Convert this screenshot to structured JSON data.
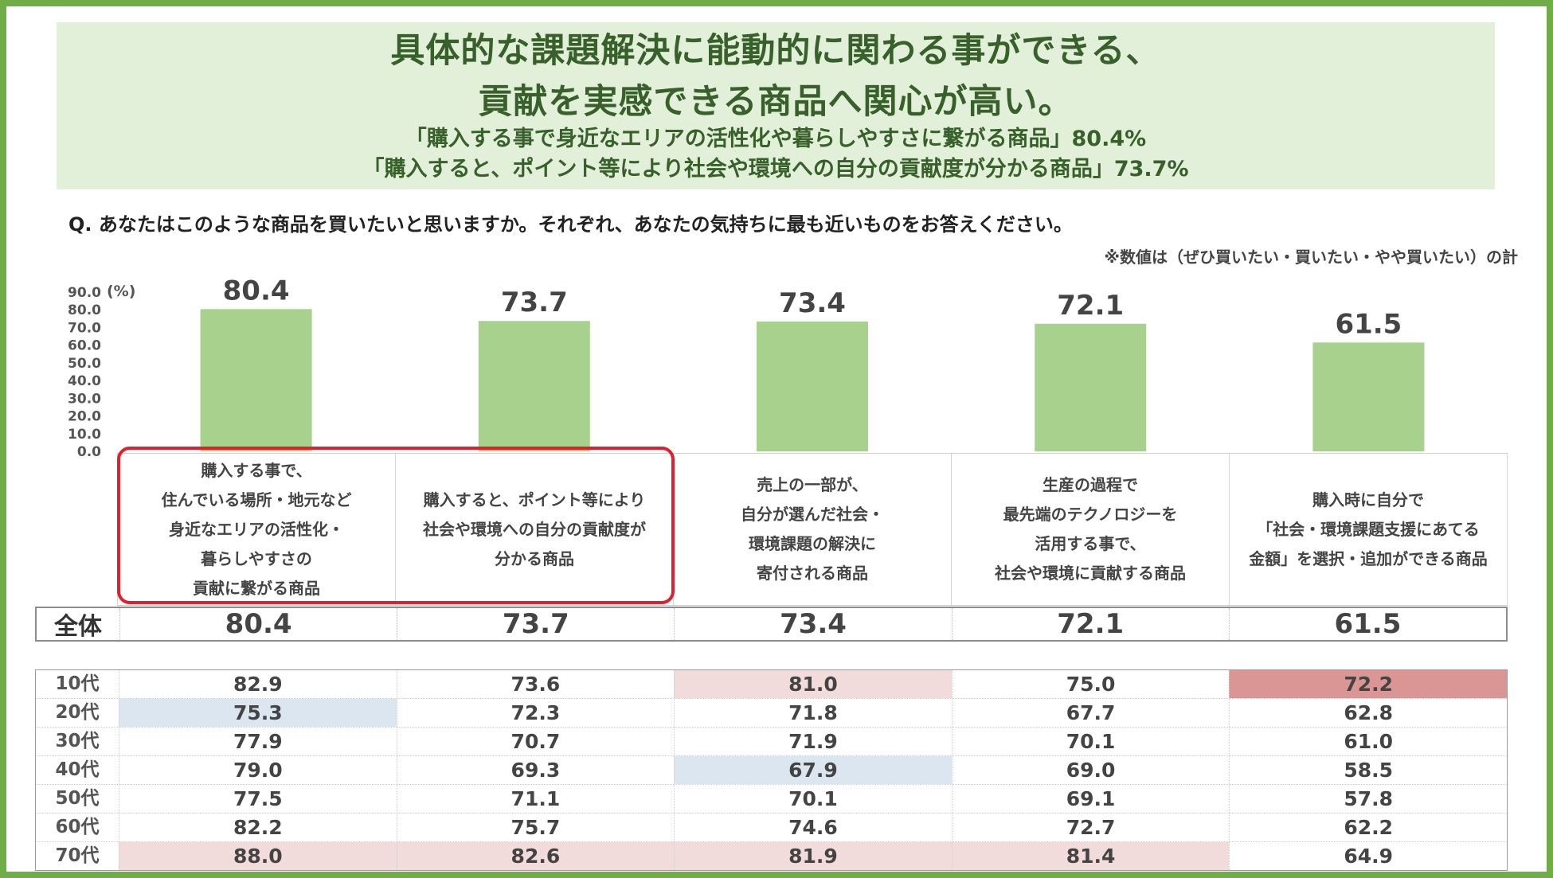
{
  "header": {
    "title_line1": "具体的な課題解決に能動的に関わる事ができる、",
    "title_line2": "貢献を実感できる商品へ関心が高い。",
    "sub_line1": "「購入する事で身近なエリアの活性化や暮らしやすさに繋がる商品」80.4%",
    "sub_line2": "「購入すると、ポイント等により社会や環境への自分の貢献度が分かる商品」73.7%"
  },
  "question": "Q.  あなたはこのような商品を買いたいと思いますか。それぞれ、あなたの気持ちに最も近いものをお答えください。",
  "note": "※数値は（ぜひ買いたい・買いたい・やや買いたい）の計",
  "colors": {
    "bar": "#a9d18e",
    "highlight_border": "#e0212d",
    "cell_pink": "#f2dcdb",
    "cell_red": "#da9694",
    "cell_blue": "#dce6f1",
    "frame": "#6fae46",
    "header_bg": "#e2efd9",
    "header_text": "#37602a"
  },
  "chart_data": {
    "type": "bar",
    "unit": "(%)",
    "ylim": [
      0,
      90
    ],
    "yticks": [
      "90.0",
      "80.0",
      "70.0",
      "60.0",
      "50.0",
      "40.0",
      "30.0",
      "20.0",
      "10.0",
      "0.0"
    ],
    "categories": [
      "購入する事で、\n住んでいる場所・地元など\n身近なエリアの活性化・\n暮らしやすさの\n貢献に繋がる商品",
      "購入すると、ポイント等により\n社会や環境への自分の貢献度が\n分かる商品",
      "売上の一部が、\n自分が選んだ社会・\n環境課題の解決に\n寄付される商品",
      "生産の過程で\n最先端のテクノロジーを\n活用する事で、\n社会や環境に貢献する商品",
      "購入時に自分で\n「社会・環境課題支援にあてる\n金額」を選択・追加ができる商品"
    ],
    "values": [
      80.4,
      73.7,
      73.4,
      72.1,
      61.5
    ],
    "value_labels": [
      "80.4",
      "73.7",
      "73.4",
      "72.1",
      "61.5"
    ],
    "highlighted_categories": [
      0,
      1
    ]
  },
  "table": {
    "total_label": "全体",
    "total_values": [
      "80.4",
      "73.7",
      "73.4",
      "72.1",
      "61.5"
    ],
    "rows": [
      {
        "label": "10代",
        "values": [
          "82.9",
          "73.6",
          "81.0",
          "75.0",
          "72.2"
        ],
        "shading": [
          "",
          "",
          "pink",
          "",
          "red"
        ]
      },
      {
        "label": "20代",
        "values": [
          "75.3",
          "72.3",
          "71.8",
          "67.7",
          "62.8"
        ],
        "shading": [
          "blue",
          "",
          "",
          "",
          ""
        ]
      },
      {
        "label": "30代",
        "values": [
          "77.9",
          "70.7",
          "71.9",
          "70.1",
          "61.0"
        ],
        "shading": [
          "",
          "",
          "",
          "",
          ""
        ]
      },
      {
        "label": "40代",
        "values": [
          "79.0",
          "69.3",
          "67.9",
          "69.0",
          "58.5"
        ],
        "shading": [
          "",
          "",
          "blue",
          "",
          ""
        ]
      },
      {
        "label": "50代",
        "values": [
          "77.5",
          "71.1",
          "70.1",
          "69.1",
          "57.8"
        ],
        "shading": [
          "",
          "",
          "",
          "",
          ""
        ]
      },
      {
        "label": "60代",
        "values": [
          "82.2",
          "75.7",
          "74.6",
          "72.7",
          "62.2"
        ],
        "shading": [
          "",
          "",
          "",
          "",
          ""
        ]
      },
      {
        "label": "70代",
        "values": [
          "88.0",
          "82.6",
          "81.9",
          "81.4",
          "64.9"
        ],
        "shading": [
          "pink",
          "pink",
          "pink",
          "pink",
          ""
        ]
      }
    ]
  }
}
